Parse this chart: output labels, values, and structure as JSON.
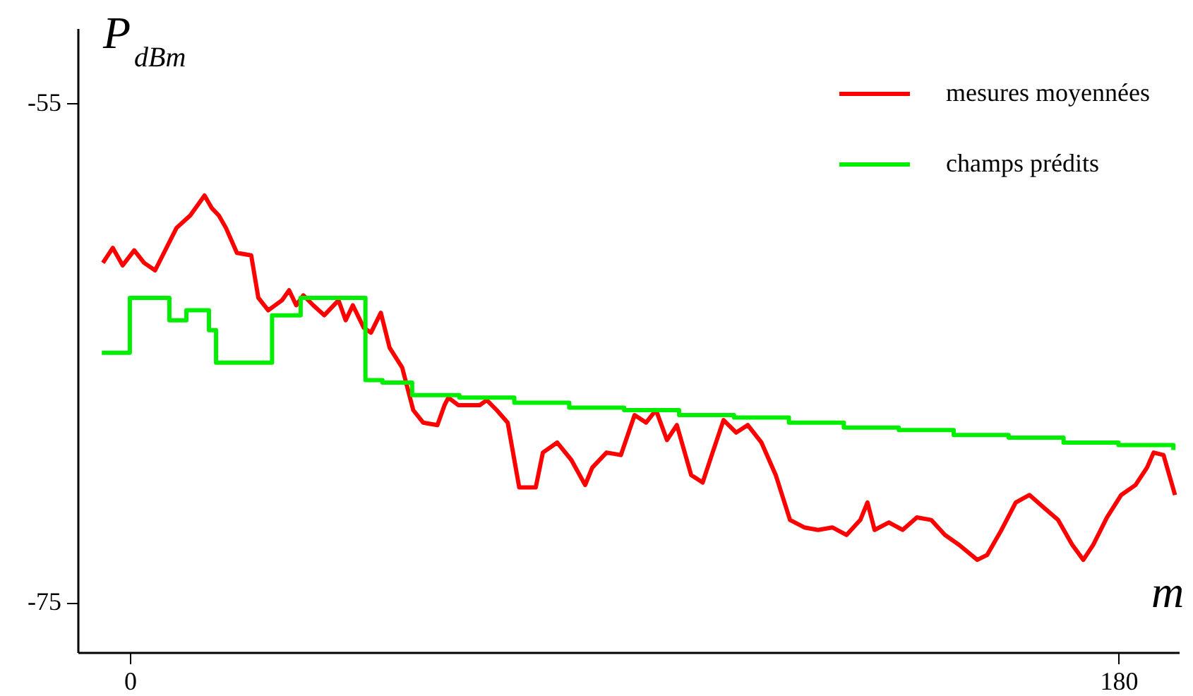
{
  "chart_data": {
    "type": "line",
    "xlabel": "m",
    "ylabel": "P$_{dBm}$",
    "xlim": [
      -9.5,
      191
    ],
    "ylim": [
      -77,
      -52
    ],
    "xticks": [
      0,
      180
    ],
    "yticks": [
      -55,
      -75
    ],
    "grid": false,
    "legend": "top right",
    "marker": "none",
    "line_style": "solid",
    "series": [
      {
        "name": "mesures moyennées",
        "color": "#ff0000",
        "x": [
          -4.9,
          -3.1,
          -1.3,
          0.8,
          2.6,
          4.6,
          8.5,
          11.0,
          13.6,
          14.9,
          16.2,
          17.5,
          19.5,
          22.1,
          23.4,
          25.2,
          27.7,
          29.0,
          30.3,
          31.6,
          33.4,
          35.4,
          38.0,
          39.3,
          40.6,
          42.6,
          43.9,
          45.7,
          47.3,
          49.6,
          51.6,
          53.4,
          56.0,
          57.3,
          58.0,
          59.8,
          63.7,
          65.0,
          66.8,
          68.8,
          70.9,
          73.9,
          75.2,
          77.8,
          80.4,
          82.9,
          84.2,
          86.8,
          89.4,
          91.9,
          94.0,
          95.8,
          97.8,
          99.6,
          102.2,
          104.3,
          106.1,
          108.1,
          110.4,
          112.5,
          115.0,
          117.6,
          120.2,
          122.8,
          125.3,
          127.9,
          130.5,
          133.0,
          134.3,
          135.6,
          138.2,
          140.7,
          143.3,
          145.9,
          148.4,
          151.0,
          154.3,
          156.1,
          158.7,
          161.3,
          163.8,
          166.4,
          169.0,
          171.6,
          173.6,
          175.4,
          177.9,
          180.5,
          183.1,
          185.2,
          186.4,
          188.2,
          190.3
        ],
        "values": [
          -61.4,
          -60.8,
          -61.5,
          -60.9,
          -61.4,
          -61.7,
          -60.0,
          -59.5,
          -58.7,
          -59.2,
          -59.5,
          -60.0,
          -61.0,
          -61.1,
          -62.8,
          -63.3,
          -62.9,
          -62.5,
          -63.1,
          -62.7,
          -63.1,
          -63.5,
          -62.9,
          -63.7,
          -63.1,
          -64.0,
          -64.2,
          -63.4,
          -64.8,
          -65.6,
          -67.3,
          -67.8,
          -67.9,
          -67.1,
          -66.8,
          -67.1,
          -67.1,
          -66.9,
          -67.3,
          -67.8,
          -70.4,
          -70.4,
          -69.0,
          -68.6,
          -69.3,
          -70.3,
          -69.6,
          -69.0,
          -69.1,
          -67.5,
          -67.8,
          -67.3,
          -68.5,
          -67.9,
          -69.9,
          -70.2,
          -69.0,
          -67.7,
          -68.2,
          -67.9,
          -68.6,
          -69.9,
          -71.7,
          -72.0,
          -72.1,
          -72.0,
          -72.3,
          -71.7,
          -71.0,
          -72.1,
          -71.8,
          -72.1,
          -71.6,
          -71.7,
          -72.3,
          -72.7,
          -73.3,
          -73.1,
          -72.1,
          -71.0,
          -70.7,
          -71.2,
          -71.7,
          -72.7,
          -73.3,
          -72.7,
          -71.6,
          -70.7,
          -70.3,
          -69.6,
          -69.0,
          -69.1,
          -70.7
        ]
      },
      {
        "name": "champs prédits",
        "color": "#00ee00",
        "type": "step",
        "x": [
          -5.1,
          0,
          7.2,
          10.3,
          14.4,
          15.7,
          25.9,
          31.1,
          42.9,
          46,
          51.4,
          60,
          70,
          80,
          90,
          100,
          110,
          120,
          130,
          140,
          150,
          160,
          170,
          180,
          190
        ],
        "values": [
          -65.0,
          -62.8,
          -63.7,
          -63.3,
          -64.1,
          -65.4,
          -63.5,
          -62.8,
          -66.1,
          -66.2,
          -66.7,
          -66.8,
          -67.0,
          -67.2,
          -67.3,
          -67.5,
          -67.6,
          -67.8,
          -68.0,
          -68.1,
          -68.3,
          -68.4,
          -68.6,
          -68.7,
          -68.9
        ]
      }
    ]
  }
}
